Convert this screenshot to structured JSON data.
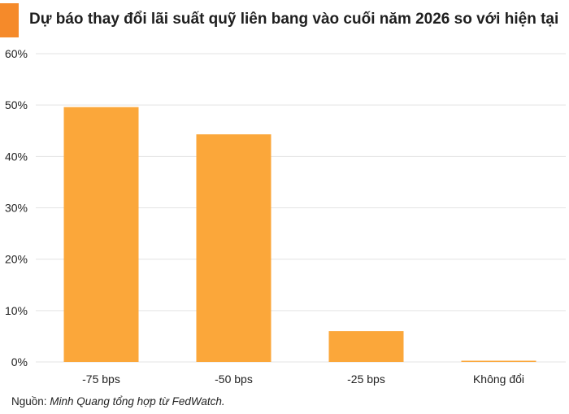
{
  "colors": {
    "accent": "#f58a2a",
    "bar": "#fba73a",
    "grid": "#e3e3e3"
  },
  "chart_data": {
    "type": "bar",
    "title": "Dự báo thay đổi lãi suất quỹ liên bang vào cuối năm 2026 so với hiện tại",
    "categories": [
      "-75 bps",
      "-50 bps",
      "-25 bps",
      "Không đổi"
    ],
    "values": [
      49.6,
      44.3,
      6.0,
      0.2
    ],
    "value_format": "percent",
    "ylim": [
      0,
      60
    ],
    "yticks": [
      0,
      10,
      20,
      30,
      40,
      50,
      60
    ],
    "ytick_labels": [
      "0%",
      "10%",
      "20%",
      "30%",
      "40%",
      "50%",
      "60%"
    ],
    "grid": true,
    "legend": "none",
    "xlabel": "",
    "ylabel": ""
  },
  "source": {
    "prefix": "Nguồn: ",
    "text": "Minh Quang tổng hợp từ FedWatch."
  }
}
